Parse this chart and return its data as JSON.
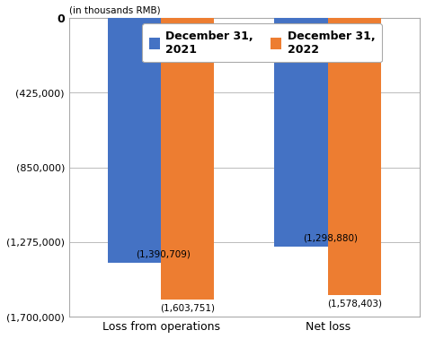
{
  "categories": [
    "Loss from operations",
    "Net loss"
  ],
  "series": [
    {
      "label": "December 31,\n2021",
      "color": "#4472C4",
      "values": [
        -1390709,
        -1298880
      ]
    },
    {
      "label": "December 31,\n2022",
      "color": "#ED7D31",
      "values": [
        -1603751,
        -1578403
      ]
    }
  ],
  "bar_labels_2021": [
    "(1,390,709)",
    "(1,298,880)"
  ],
  "bar_labels_2022": [
    "(1,603,751)",
    "(1,578,403)"
  ],
  "units_label": "(in thousands RMB)",
  "ylim": [
    -1700000,
    0
  ],
  "yticks": [
    0,
    -425000,
    -850000,
    -1275000,
    -1700000
  ],
  "ytick_labels": [
    "0",
    "(425,000)",
    "(850,000)",
    "(1,275,000)",
    "(1,700,000)"
  ],
  "background_color": "#ffffff",
  "bar_width": 0.32,
  "grid_color": "#bbbbbb",
  "frame_color": "#aaaaaa"
}
